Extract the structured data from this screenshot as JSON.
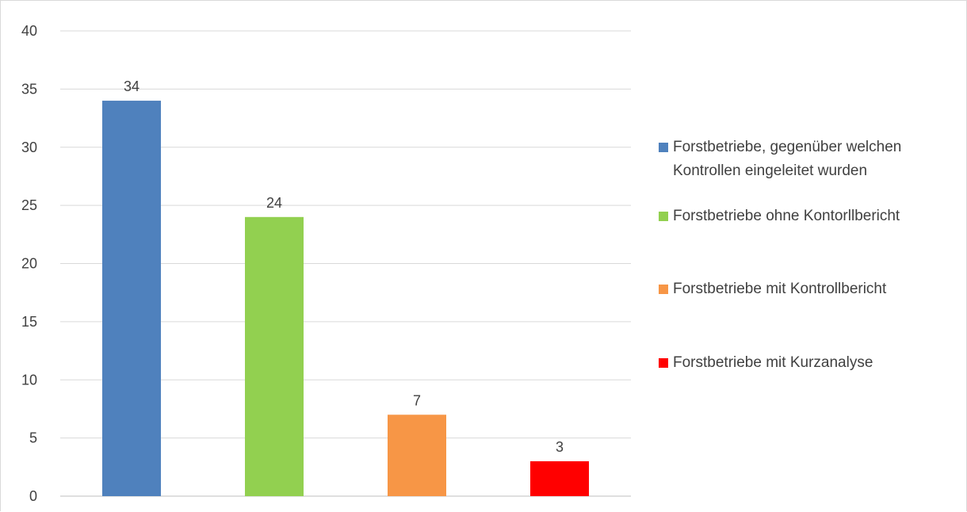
{
  "chart_data": {
    "type": "bar",
    "title": "",
    "xlabel": "",
    "ylabel": "",
    "ylim": [
      0,
      40
    ],
    "yticks": [
      0,
      5,
      10,
      15,
      20,
      25,
      30,
      35,
      40
    ],
    "grid": true,
    "legend_position": "right",
    "categories": [
      "Forstbetriebe, gegenüber welchen Kontrollen eingeleitet wurden",
      "Forstbetriebe ohne Kontorllbericht",
      "Forstbetriebe mit Kontrollbericht",
      "Forstbetriebe mit Kurzanalyse"
    ],
    "values": [
      34,
      24,
      7,
      3
    ],
    "colors": [
      "#4f81bd",
      "#92d050",
      "#f79646",
      "#ff0000"
    ],
    "data_labels": [
      "34",
      "24",
      "7",
      "3"
    ]
  }
}
